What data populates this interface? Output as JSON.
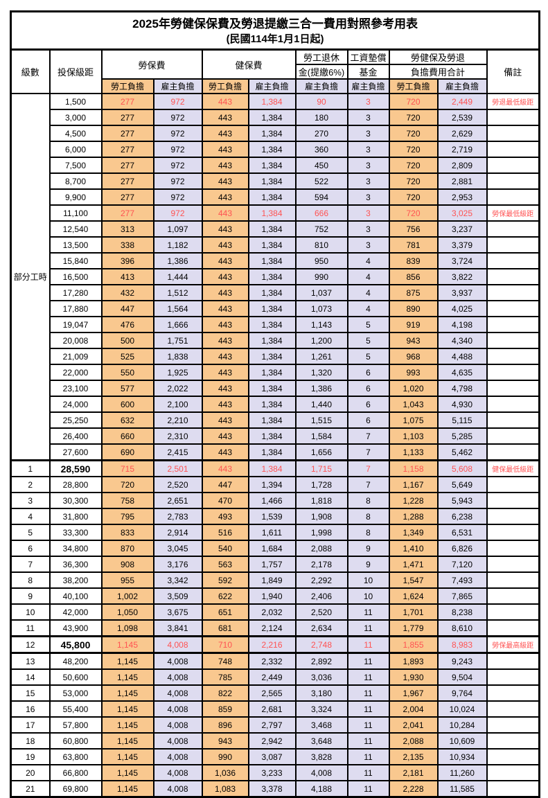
{
  "title": "2025年勞健保保費及勞退提繳三合一費用對照參考用表",
  "subtitle": "(民國114年1月1日起)",
  "colors": {
    "employee_bg": "#F9C88F",
    "employer_bg": "#DEDCF0",
    "highlight_red": "#FF5252"
  },
  "header": {
    "level": "級數",
    "bracket": "投保級距",
    "labor_ins": "勞保費",
    "health_ins": "健保費",
    "pension_line1": "勞工退休",
    "pension_line2": "金(提繳6%)",
    "wage_fund_line1": "工資墊償",
    "wage_fund_line2": "基金",
    "total_line1": "勞健保及勞退",
    "total_line2": "負擔費用合計",
    "note_col": "備註",
    "employee": "勞工負擔",
    "employer": "雇主負擔"
  },
  "part_time_label": "部分工時",
  "rows": [
    {
      "level": "",
      "bracket": "1,500",
      "values": [
        "277",
        "972",
        "443",
        "1,384",
        "90",
        "3",
        "720",
        "2,449"
      ],
      "note": "勞退最低級距",
      "red": true,
      "big": false
    },
    {
      "level": "",
      "bracket": "3,000",
      "values": [
        "277",
        "972",
        "443",
        "1,384",
        "180",
        "3",
        "720",
        "2,539"
      ],
      "note": "",
      "red": false,
      "big": false
    },
    {
      "level": "",
      "bracket": "4,500",
      "values": [
        "277",
        "972",
        "443",
        "1,384",
        "270",
        "3",
        "720",
        "2,629"
      ],
      "note": "",
      "red": false,
      "big": false
    },
    {
      "level": "",
      "bracket": "6,000",
      "values": [
        "277",
        "972",
        "443",
        "1,384",
        "360",
        "3",
        "720",
        "2,719"
      ],
      "note": "",
      "red": false,
      "big": false
    },
    {
      "level": "",
      "bracket": "7,500",
      "values": [
        "277",
        "972",
        "443",
        "1,384",
        "450",
        "3",
        "720",
        "2,809"
      ],
      "note": "",
      "red": false,
      "big": false
    },
    {
      "level": "",
      "bracket": "8,700",
      "values": [
        "277",
        "972",
        "443",
        "1,384",
        "522",
        "3",
        "720",
        "2,881"
      ],
      "note": "",
      "red": false,
      "big": false
    },
    {
      "level": "",
      "bracket": "9,900",
      "values": [
        "277",
        "972",
        "443",
        "1,384",
        "594",
        "3",
        "720",
        "2,953"
      ],
      "note": "",
      "red": false,
      "big": false
    },
    {
      "level": "",
      "bracket": "11,100",
      "values": [
        "277",
        "972",
        "443",
        "1,384",
        "666",
        "3",
        "720",
        "3,025"
      ],
      "note": "勞保最低級距",
      "red": true,
      "big": false
    },
    {
      "level": "",
      "bracket": "12,540",
      "values": [
        "313",
        "1,097",
        "443",
        "1,384",
        "752",
        "3",
        "756",
        "3,237"
      ],
      "note": "",
      "red": false,
      "big": false
    },
    {
      "level": "",
      "bracket": "13,500",
      "values": [
        "338",
        "1,182",
        "443",
        "1,384",
        "810",
        "3",
        "781",
        "3,379"
      ],
      "note": "",
      "red": false,
      "big": false
    },
    {
      "level": "",
      "bracket": "15,840",
      "values": [
        "396",
        "1,386",
        "443",
        "1,384",
        "950",
        "4",
        "839",
        "3,724"
      ],
      "note": "",
      "red": false,
      "big": false
    },
    {
      "level": "",
      "bracket": "16,500",
      "values": [
        "413",
        "1,444",
        "443",
        "1,384",
        "990",
        "4",
        "856",
        "3,822"
      ],
      "note": "",
      "red": false,
      "big": false
    },
    {
      "level": "",
      "bracket": "17,280",
      "values": [
        "432",
        "1,512",
        "443",
        "1,384",
        "1,037",
        "4",
        "875",
        "3,937"
      ],
      "note": "",
      "red": false,
      "big": false
    },
    {
      "level": "",
      "bracket": "17,880",
      "values": [
        "447",
        "1,564",
        "443",
        "1,384",
        "1,073",
        "4",
        "890",
        "4,025"
      ],
      "note": "",
      "red": false,
      "big": false
    },
    {
      "level": "",
      "bracket": "19,047",
      "values": [
        "476",
        "1,666",
        "443",
        "1,384",
        "1,143",
        "5",
        "919",
        "4,198"
      ],
      "note": "",
      "red": false,
      "big": false
    },
    {
      "level": "",
      "bracket": "20,008",
      "values": [
        "500",
        "1,751",
        "443",
        "1,384",
        "1,200",
        "5",
        "943",
        "4,340"
      ],
      "note": "",
      "red": false,
      "big": false
    },
    {
      "level": "",
      "bracket": "21,009",
      "values": [
        "525",
        "1,838",
        "443",
        "1,384",
        "1,261",
        "5",
        "968",
        "4,488"
      ],
      "note": "",
      "red": false,
      "big": false
    },
    {
      "level": "",
      "bracket": "22,000",
      "values": [
        "550",
        "1,925",
        "443",
        "1,384",
        "1,320",
        "6",
        "993",
        "4,635"
      ],
      "note": "",
      "red": false,
      "big": false
    },
    {
      "level": "",
      "bracket": "23,100",
      "values": [
        "577",
        "2,022",
        "443",
        "1,384",
        "1,386",
        "6",
        "1,020",
        "4,798"
      ],
      "note": "",
      "red": false,
      "big": false
    },
    {
      "level": "",
      "bracket": "24,000",
      "values": [
        "600",
        "2,100",
        "443",
        "1,384",
        "1,440",
        "6",
        "1,043",
        "4,930"
      ],
      "note": "",
      "red": false,
      "big": false
    },
    {
      "level": "",
      "bracket": "25,250",
      "values": [
        "632",
        "2,210",
        "443",
        "1,384",
        "1,515",
        "6",
        "1,075",
        "5,115"
      ],
      "note": "",
      "red": false,
      "big": false
    },
    {
      "level": "",
      "bracket": "26,400",
      "values": [
        "660",
        "2,310",
        "443",
        "1,384",
        "1,584",
        "7",
        "1,103",
        "5,285"
      ],
      "note": "",
      "red": false,
      "big": false
    },
    {
      "level": "",
      "bracket": "27,600",
      "values": [
        "690",
        "2,415",
        "443",
        "1,384",
        "1,656",
        "7",
        "1,133",
        "5,462"
      ],
      "note": "",
      "red": false,
      "big": false
    },
    {
      "level": "1",
      "bracket": "28,590",
      "values": [
        "715",
        "2,501",
        "443",
        "1,384",
        "1,715",
        "7",
        "1,158",
        "5,608"
      ],
      "note": "健保最低級距",
      "red": true,
      "big": true,
      "sep": true
    },
    {
      "level": "2",
      "bracket": "28,800",
      "values": [
        "720",
        "2,520",
        "447",
        "1,394",
        "1,728",
        "7",
        "1,167",
        "5,649"
      ],
      "note": "",
      "red": false,
      "big": false
    },
    {
      "level": "3",
      "bracket": "30,300",
      "values": [
        "758",
        "2,651",
        "470",
        "1,466",
        "1,818",
        "8",
        "1,228",
        "5,943"
      ],
      "note": "",
      "red": false,
      "big": false
    },
    {
      "level": "4",
      "bracket": "31,800",
      "values": [
        "795",
        "2,783",
        "493",
        "1,539",
        "1,908",
        "8",
        "1,288",
        "6,238"
      ],
      "note": "",
      "red": false,
      "big": false
    },
    {
      "level": "5",
      "bracket": "33,300",
      "values": [
        "833",
        "2,914",
        "516",
        "1,611",
        "1,998",
        "8",
        "1,349",
        "6,531"
      ],
      "note": "",
      "red": false,
      "big": false
    },
    {
      "level": "6",
      "bracket": "34,800",
      "values": [
        "870",
        "3,045",
        "540",
        "1,684",
        "2,088",
        "9",
        "1,410",
        "6,826"
      ],
      "note": "",
      "red": false,
      "big": false
    },
    {
      "level": "7",
      "bracket": "36,300",
      "values": [
        "908",
        "3,176",
        "563",
        "1,757",
        "2,178",
        "9",
        "1,471",
        "7,120"
      ],
      "note": "",
      "red": false,
      "big": false
    },
    {
      "level": "8",
      "bracket": "38,200",
      "values": [
        "955",
        "3,342",
        "592",
        "1,849",
        "2,292",
        "10",
        "1,547",
        "7,493"
      ],
      "note": "",
      "red": false,
      "big": false
    },
    {
      "level": "9",
      "bracket": "40,100",
      "values": [
        "1,002",
        "3,509",
        "622",
        "1,940",
        "2,406",
        "10",
        "1,624",
        "7,865"
      ],
      "note": "",
      "red": false,
      "big": false
    },
    {
      "level": "10",
      "bracket": "42,000",
      "values": [
        "1,050",
        "3,675",
        "651",
        "2,032",
        "2,520",
        "11",
        "1,701",
        "8,238"
      ],
      "note": "",
      "red": false,
      "big": false
    },
    {
      "level": "11",
      "bracket": "43,900",
      "values": [
        "1,098",
        "3,841",
        "681",
        "2,124",
        "2,634",
        "11",
        "1,779",
        "8,610"
      ],
      "note": "",
      "red": false,
      "big": false
    },
    {
      "level": "12",
      "bracket": "45,800",
      "values": [
        "1,145",
        "4,008",
        "710",
        "2,216",
        "2,748",
        "11",
        "1,855",
        "8,983"
      ],
      "note": "勞保最高級距",
      "red": true,
      "big": true,
      "sep": true
    },
    {
      "level": "13",
      "bracket": "48,200",
      "values": [
        "1,145",
        "4,008",
        "748",
        "2,332",
        "2,892",
        "11",
        "1,893",
        "9,243"
      ],
      "note": "",
      "red": false,
      "big": false,
      "sep": true
    },
    {
      "level": "14",
      "bracket": "50,600",
      "values": [
        "1,145",
        "4,008",
        "785",
        "2,449",
        "3,036",
        "11",
        "1,930",
        "9,504"
      ],
      "note": "",
      "red": false,
      "big": false
    },
    {
      "level": "15",
      "bracket": "53,000",
      "values": [
        "1,145",
        "4,008",
        "822",
        "2,565",
        "3,180",
        "11",
        "1,967",
        "9,764"
      ],
      "note": "",
      "red": false,
      "big": false
    },
    {
      "level": "16",
      "bracket": "55,400",
      "values": [
        "1,145",
        "4,008",
        "859",
        "2,681",
        "3,324",
        "11",
        "2,004",
        "10,024"
      ],
      "note": "",
      "red": false,
      "big": false
    },
    {
      "level": "17",
      "bracket": "57,800",
      "values": [
        "1,145",
        "4,008",
        "896",
        "2,797",
        "3,468",
        "11",
        "2,041",
        "10,284"
      ],
      "note": "",
      "red": false,
      "big": false
    },
    {
      "level": "18",
      "bracket": "60,800",
      "values": [
        "1,145",
        "4,008",
        "943",
        "2,942",
        "3,648",
        "11",
        "2,088",
        "10,609"
      ],
      "note": "",
      "red": false,
      "big": false
    },
    {
      "level": "19",
      "bracket": "63,800",
      "values": [
        "1,145",
        "4,008",
        "990",
        "3,087",
        "3,828",
        "11",
        "2,135",
        "10,934"
      ],
      "note": "",
      "red": false,
      "big": false
    },
    {
      "level": "20",
      "bracket": "66,800",
      "values": [
        "1,145",
        "4,008",
        "1,036",
        "3,233",
        "4,008",
        "11",
        "2,181",
        "11,260"
      ],
      "note": "",
      "red": false,
      "big": false
    },
    {
      "level": "21",
      "bracket": "69,800",
      "values": [
        "1,145",
        "4,008",
        "1,083",
        "3,378",
        "4,188",
        "11",
        "2,228",
        "11,585"
      ],
      "note": "",
      "red": false,
      "big": false
    }
  ]
}
